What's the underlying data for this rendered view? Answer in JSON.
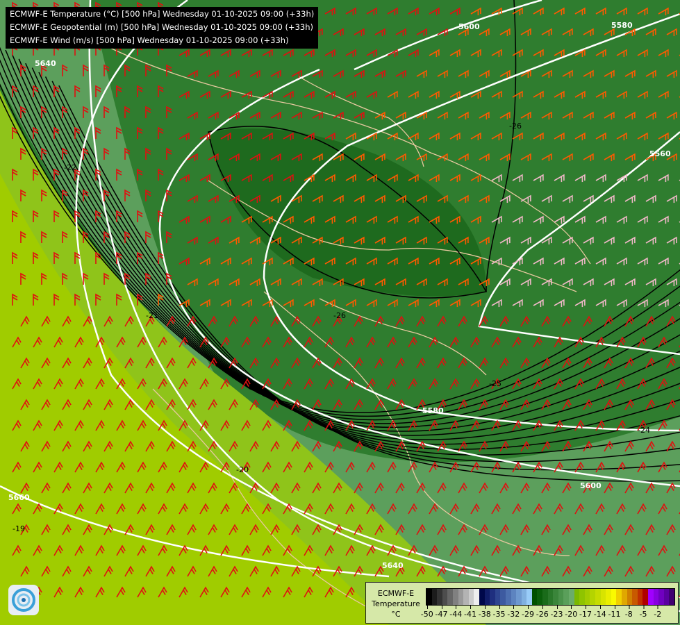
{
  "header": {
    "lines": [
      "ECMWF-E Temperature (°C) [500 hPa] Wednesday 01-10-2025 09:00 (+33h)",
      "ECMWF-E Geopotential (m) [500 hPa] Wednesday 01-10-2025 09:00 (+33h)",
      "ECMWF-E Wind (m/s) [500 hPa] Wednesday 01-10-2025 09:00 (+33h)"
    ]
  },
  "geopotential_labels": [
    "5600",
    "5580",
    "5560",
    "5640",
    "5580",
    "5600",
    "5660",
    "5640"
  ],
  "temperature_labels": [
    "-26",
    "-22",
    "-21",
    "-26",
    "-25",
    "-24",
    "-20",
    "-19"
  ],
  "legend": {
    "title_line1": "ECMWF-E",
    "title_line2": "Temperature",
    "unit": "°C",
    "ticks": [
      "-50",
      "-47",
      "-44",
      "-41",
      "-38",
      "-35",
      "-32",
      "-29",
      "-26",
      "-23",
      "-20",
      "-17",
      "-14",
      "-11",
      "-8",
      "-5",
      "-2"
    ],
    "colors": [
      "#000000",
      "#1c1c1c",
      "#333333",
      "#4d4d4d",
      "#666666",
      "#808080",
      "#999999",
      "#b3b3b3",
      "#cccccc",
      "#eeeeee",
      "#00084a",
      "#101c68",
      "#1f2f7f",
      "#2e4590",
      "#3d5aa0",
      "#4d6fb0",
      "#5d84c0",
      "#6e99d0",
      "#80b0e0",
      "#99ccf8",
      "#005000",
      "#0a5e0a",
      "#1a6b1a",
      "#2a782a",
      "#3a853a",
      "#4a924a",
      "#5a9f5a",
      "#6aac6a",
      "#7ab800",
      "#8fc400",
      "#a2cc00",
      "#b4d400",
      "#c6dc00",
      "#d8e400",
      "#eaee00",
      "#fafa00",
      "#f0d000",
      "#e0a800",
      "#d08000",
      "#c85a00",
      "#c03000",
      "#b00000",
      "#a000ff",
      "#8800e0",
      "#7000c0",
      "#5a00a0",
      "#400070"
    ]
  },
  "logo": "ecmwf-logo"
}
